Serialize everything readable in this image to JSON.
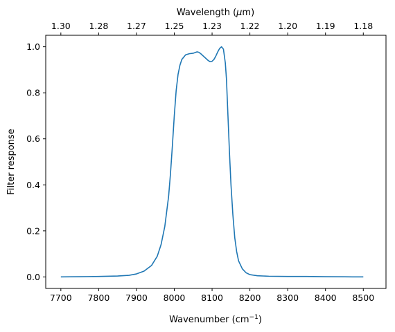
{
  "chart_data": {
    "type": "line",
    "title": "",
    "xlabel": "Wavenumber (cm",
    "xlabel_sup": "−1",
    "xlabel_end": ")",
    "ylabel": "Filter response",
    "x2label": "Wavelength (",
    "x2label_mu": "μ",
    "x2label_end": "m)",
    "xlim": [
      7660,
      8560
    ],
    "ylim": [
      -0.05,
      1.05
    ],
    "xticks": [
      7700,
      7800,
      7900,
      8000,
      8100,
      8200,
      8300,
      8400,
      8500
    ],
    "xtick_labels": [
      "7700",
      "7800",
      "7900",
      "8000",
      "8100",
      "8200",
      "8300",
      "8400",
      "8500"
    ],
    "yticks": [
      0.0,
      0.2,
      0.4,
      0.6,
      0.8,
      1.0
    ],
    "ytick_labels": [
      "0.0",
      "0.2",
      "0.4",
      "0.6",
      "0.8",
      "1.0"
    ],
    "x2ticks_at_wavenumber": [
      7700,
      7800,
      7900,
      8000,
      8100,
      8200,
      8300,
      8400,
      8500
    ],
    "x2tick_labels": [
      "1.30",
      "1.28",
      "1.27",
      "1.25",
      "1.23",
      "1.22",
      "1.20",
      "1.19",
      "1.18"
    ],
    "grid": false,
    "line_color": "#1f77b4",
    "series": [
      {
        "x": [
          7700,
          7750,
          7800,
          7850,
          7880,
          7900,
          7920,
          7940,
          7955,
          7965,
          7975,
          7985,
          7990,
          7995,
          8000,
          8005,
          8010,
          8015,
          8020,
          8030,
          8040,
          8050,
          8060,
          8065,
          8070,
          8080,
          8090,
          8095,
          8100,
          8105,
          8110,
          8115,
          8120,
          8125,
          8130,
          8135,
          8138,
          8140,
          8143,
          8146,
          8150,
          8155,
          8160,
          8165,
          8170,
          8180,
          8190,
          8200,
          8220,
          8250,
          8300,
          8350,
          8400,
          8450,
          8500
        ],
        "y": [
          0.0,
          0.001,
          0.002,
          0.004,
          0.007,
          0.013,
          0.025,
          0.05,
          0.09,
          0.14,
          0.22,
          0.35,
          0.45,
          0.57,
          0.7,
          0.81,
          0.88,
          0.92,
          0.945,
          0.965,
          0.97,
          0.972,
          0.978,
          0.976,
          0.97,
          0.955,
          0.94,
          0.935,
          0.937,
          0.945,
          0.96,
          0.978,
          0.993,
          1.0,
          0.99,
          0.93,
          0.86,
          0.78,
          0.66,
          0.54,
          0.4,
          0.27,
          0.17,
          0.11,
          0.07,
          0.035,
          0.018,
          0.01,
          0.005,
          0.003,
          0.002,
          0.002,
          0.001,
          0.0005,
          0.0
        ]
      }
    ]
  }
}
